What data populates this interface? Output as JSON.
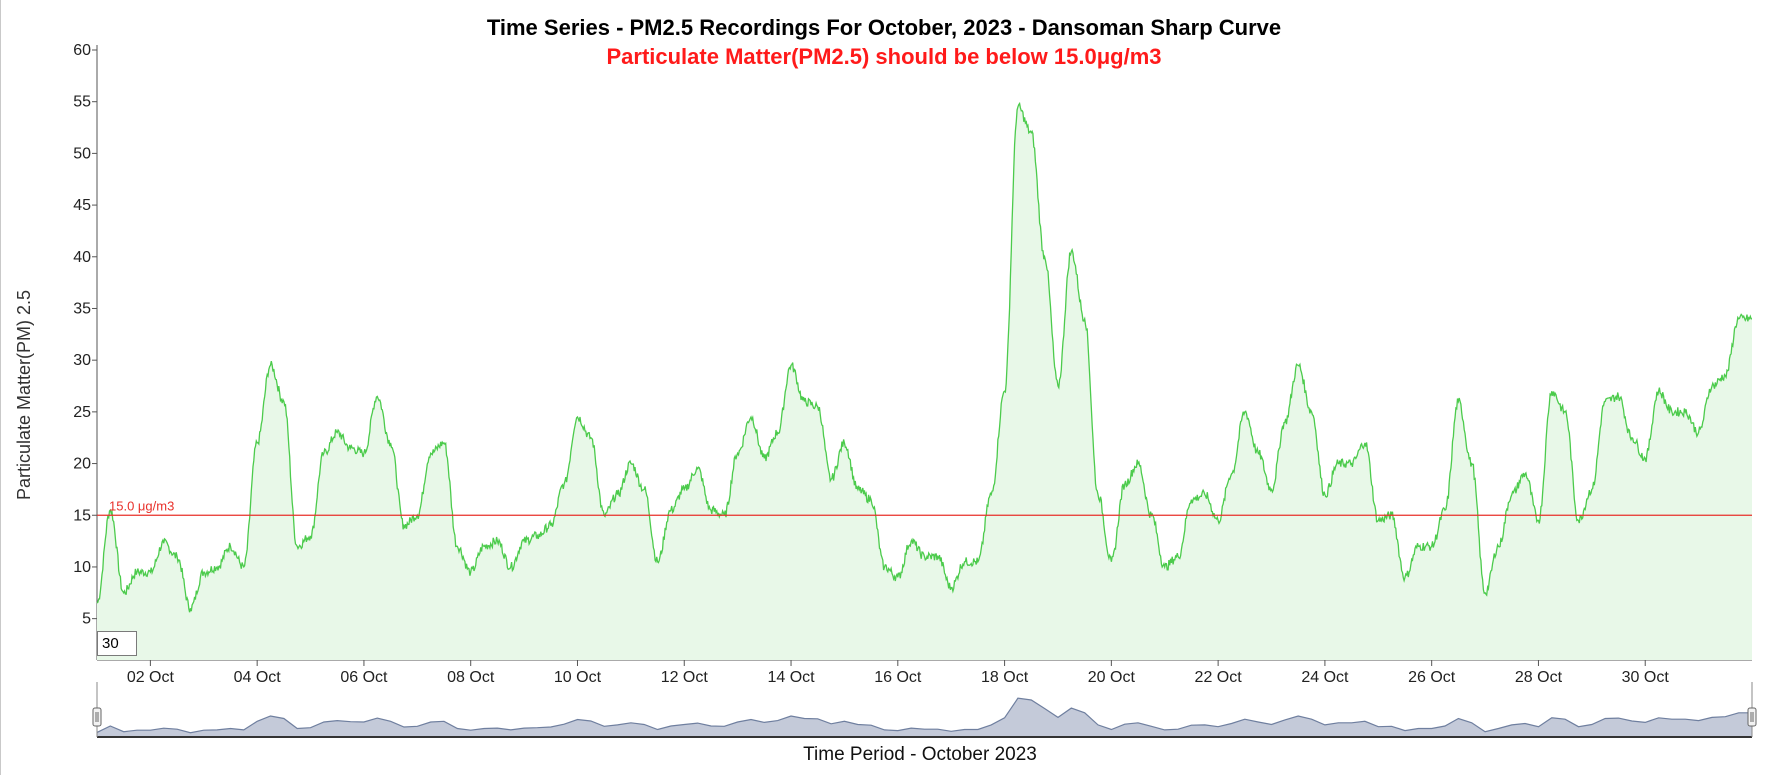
{
  "chart_data": {
    "type": "area",
    "title": "Time Series - PM2.5 Recordings For October, 2023 - Dansoman Sharp Curve",
    "subtitle": "Particulate Matter(PM2.5) should be below 15.0μg/m3",
    "ylabel": "Particulate Matter(PM) 2.5",
    "xlabel": "Time Period - October 2023",
    "ylim": [
      1,
      60
    ],
    "xlim": [
      "2023-10-01",
      "2023-11-01"
    ],
    "y_ticks": [
      5,
      10,
      15,
      20,
      25,
      30,
      35,
      40,
      45,
      50,
      55,
      60
    ],
    "x_tick_labels": [
      "02 Oct",
      "04 Oct",
      "06 Oct",
      "08 Oct",
      "10 Oct",
      "12 Oct",
      "14 Oct",
      "16 Oct",
      "18 Oct",
      "20 Oct",
      "22 Oct",
      "24 Oct",
      "26 Oct",
      "28 Oct",
      "30 Oct"
    ],
    "x_tick_dates": [
      "2023-10-02",
      "2023-10-04",
      "2023-10-06",
      "2023-10-08",
      "2023-10-10",
      "2023-10-12",
      "2023-10-14",
      "2023-10-16",
      "2023-10-18",
      "2023-10-20",
      "2023-10-22",
      "2023-10-24",
      "2023-10-26",
      "2023-10-28",
      "2023-10-30"
    ],
    "threshold": {
      "value": 15.0,
      "label": "15.0 μg/m3",
      "color": "#e8302a"
    },
    "rolling_window": "30",
    "colors": {
      "line": "#4ccb4c",
      "fill": "#e8f8e8",
      "navigator_line": "#6f7f9f",
      "navigator_fill": "#c4cad9",
      "subtitle": "#ff1a1a"
    },
    "grid": false,
    "navigator": true,
    "series": [
      {
        "x": [
          "2023-10-01 00:00",
          "2023-10-01 06:00",
          "2023-10-01 12:00",
          "2023-10-01 18:00",
          "2023-10-02 00:00",
          "2023-10-02 06:00",
          "2023-10-02 12:00",
          "2023-10-02 18:00",
          "2023-10-03 00:00",
          "2023-10-03 06:00",
          "2023-10-03 12:00",
          "2023-10-03 18:00",
          "2023-10-04 00:00",
          "2023-10-04 06:00",
          "2023-10-04 12:00",
          "2023-10-04 18:00",
          "2023-10-05 00:00",
          "2023-10-05 06:00",
          "2023-10-05 12:00",
          "2023-10-05 18:00",
          "2023-10-06 00:00",
          "2023-10-06 06:00",
          "2023-10-06 12:00",
          "2023-10-06 18:00",
          "2023-10-07 00:00",
          "2023-10-07 06:00",
          "2023-10-07 12:00",
          "2023-10-07 18:00",
          "2023-10-08 00:00",
          "2023-10-08 06:00",
          "2023-10-08 12:00",
          "2023-10-08 18:00",
          "2023-10-09 00:00",
          "2023-10-09 06:00",
          "2023-10-09 12:00",
          "2023-10-09 18:00",
          "2023-10-10 00:00",
          "2023-10-10 06:00",
          "2023-10-10 12:00",
          "2023-10-10 18:00",
          "2023-10-11 00:00",
          "2023-10-11 06:00",
          "2023-10-11 12:00",
          "2023-10-11 18:00",
          "2023-10-12 00:00",
          "2023-10-12 06:00",
          "2023-10-12 12:00",
          "2023-10-12 18:00",
          "2023-10-13 00:00",
          "2023-10-13 06:00",
          "2023-10-13 12:00",
          "2023-10-13 18:00",
          "2023-10-14 00:00",
          "2023-10-14 06:00",
          "2023-10-14 12:00",
          "2023-10-14 18:00",
          "2023-10-15 00:00",
          "2023-10-15 06:00",
          "2023-10-15 12:00",
          "2023-10-15 18:00",
          "2023-10-16 00:00",
          "2023-10-16 06:00",
          "2023-10-16 12:00",
          "2023-10-16 18:00",
          "2023-10-17 00:00",
          "2023-10-17 06:00",
          "2023-10-17 12:00",
          "2023-10-17 18:00",
          "2023-10-18 00:00",
          "2023-10-18 06:00",
          "2023-10-18 12:00",
          "2023-10-18 18:00",
          "2023-10-19 00:00",
          "2023-10-19 06:00",
          "2023-10-19 12:00",
          "2023-10-19 18:00",
          "2023-10-20 00:00",
          "2023-10-20 06:00",
          "2023-10-20 12:00",
          "2023-10-20 18:00",
          "2023-10-21 00:00",
          "2023-10-21 06:00",
          "2023-10-21 12:00",
          "2023-10-21 18:00",
          "2023-10-22 00:00",
          "2023-10-22 06:00",
          "2023-10-22 12:00",
          "2023-10-22 18:00",
          "2023-10-23 00:00",
          "2023-10-23 06:00",
          "2023-10-23 12:00",
          "2023-10-23 18:00",
          "2023-10-24 00:00",
          "2023-10-24 06:00",
          "2023-10-24 12:00",
          "2023-10-24 18:00",
          "2023-10-25 00:00",
          "2023-10-25 06:00",
          "2023-10-25 12:00",
          "2023-10-25 18:00",
          "2023-10-26 00:00",
          "2023-10-26 06:00",
          "2023-10-26 12:00",
          "2023-10-26 18:00",
          "2023-10-27 00:00",
          "2023-10-27 06:00",
          "2023-10-27 12:00",
          "2023-10-27 18:00",
          "2023-10-28 00:00",
          "2023-10-28 06:00",
          "2023-10-28 12:00",
          "2023-10-28 18:00",
          "2023-10-29 00:00",
          "2023-10-29 06:00",
          "2023-10-29 12:00",
          "2023-10-29 18:00",
          "2023-10-30 00:00",
          "2023-10-30 06:00",
          "2023-10-30 12:00",
          "2023-10-30 18:00",
          "2023-10-31 00:00",
          "2023-10-31 06:00",
          "2023-10-31 12:00",
          "2023-10-31 18:00",
          "2023-11-01 00:00"
        ],
        "values": [
          6.5,
          15.5,
          7.5,
          9.5,
          9.5,
          12.3,
          11.0,
          6.0,
          9.5,
          10.0,
          12.0,
          10.0,
          22.0,
          29.5,
          26.0,
          12.0,
          13.0,
          21.0,
          23.0,
          21.5,
          21.0,
          26.5,
          22.0,
          14.0,
          15.0,
          21.0,
          22.0,
          12.0,
          9.5,
          12.0,
          12.5,
          10.0,
          12.5,
          13.0,
          14.0,
          18.0,
          24.5,
          22.5,
          15.0,
          17.0,
          20.0,
          17.5,
          10.5,
          15.5,
          17.5,
          19.5,
          15.5,
          15.0,
          21.0,
          24.5,
          20.5,
          23.0,
          29.5,
          26.0,
          25.5,
          18.5,
          22.0,
          17.5,
          16.5,
          10.0,
          9.0,
          12.5,
          11.0,
          11.0,
          8.0,
          10.5,
          10.5,
          17.0,
          27.0,
          54.5,
          52.0,
          40.0,
          27.5,
          40.5,
          34.0,
          17.0,
          10.5,
          18.0,
          20.0,
          15.0,
          10.0,
          11.0,
          16.5,
          17.0,
          14.5,
          19.0,
          25.0,
          21.0,
          17.5,
          24.0,
          29.5,
          25.0,
          17.0,
          20.0,
          20.0,
          22.0,
          14.5,
          15.0,
          9.0,
          12.0,
          12.0,
          15.5,
          26.0,
          20.0,
          7.5,
          12.0,
          17.0,
          19.0,
          14.5,
          27.0,
          25.0,
          14.5,
          17.5,
          26.0,
          26.5,
          22.5,
          20.5,
          27.0,
          25.0,
          25.0,
          23.0,
          27.5,
          28.5,
          34.0,
          34.0
        ]
      }
    ]
  }
}
